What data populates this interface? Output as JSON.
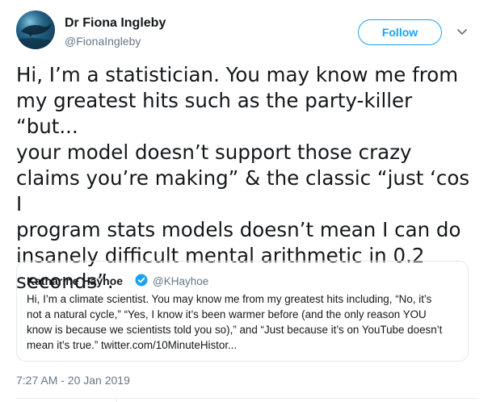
{
  "author": {
    "name": "Dr Fiona Ingleby",
    "handle": "@FionaIngleby"
  },
  "follow_button": {
    "label": "Follow"
  },
  "tweet": {
    "text": "Hi, I’m a statistician. You may know me from\nmy greatest hits such as the party-killer “but...\nyour model doesn’t support those crazy\nclaims you’re making” & the classic “just ‘cos I\nprogram stats models doesn’t mean I can do\ninsanely difficult mental arithmetic in 0.2\nseconds”."
  },
  "quoted_tweet": {
    "name": "Katharine Hayhoe",
    "handle": "@KHayhoe",
    "verified": true,
    "text": "Hi, I’m a climate scientist. You may know me from my greatest hits including, “No, it’s\nnot a natural cycle,” “Yes, I know it’s been warmer before (and the only reason YOU\nknow is because we scientists told you so),” and “Just because it’s on YouTube doesn’t\nmean it’s true.” twitter.com/10MinuteHistor..."
  },
  "timestamp": "7:27 AM - 20 Jan 2019",
  "colors": {
    "accent": "#1da1f2",
    "text": "#14171a",
    "secondary_text": "#657786",
    "border": "#e1e8ed"
  },
  "icons": {
    "avatar": "whale-photo-avatar",
    "caret": "chevron-down-icon",
    "verified": "verified-badge-icon"
  }
}
